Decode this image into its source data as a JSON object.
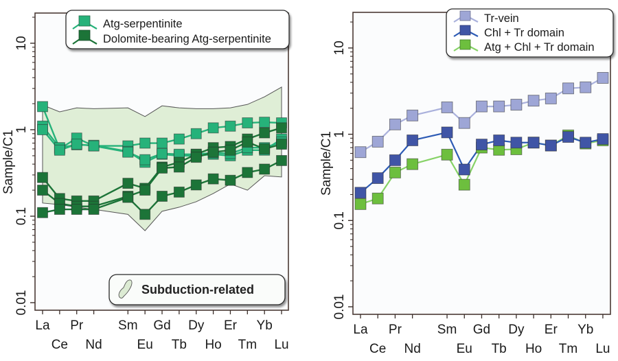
{
  "chart_data": [
    {
      "type": "line",
      "panel": "left",
      "yscale": "log",
      "ylabel": "Sample/C1",
      "xlabel": "",
      "ylim": [
        0.01,
        20
      ],
      "yticks": [
        {
          "value": 10,
          "label": "10"
        },
        {
          "value": 1,
          "label": "1"
        },
        {
          "value": 0.1,
          "label": "0.1"
        },
        {
          "value": 0.01,
          "label": "0.01"
        }
      ],
      "categories": [
        "La",
        "Ce",
        "Pr",
        "Nd",
        "Sm",
        "Eu",
        "Gd",
        "Tb",
        "Dy",
        "Ho",
        "Er",
        "Tm",
        "Yb",
        "Lu"
      ],
      "category_positions": [
        0,
        1,
        2,
        3,
        5,
        6,
        7,
        8,
        9,
        10,
        11,
        12,
        13,
        14
      ],
      "category_rows": [
        0,
        1,
        0,
        1,
        0,
        1,
        0,
        1,
        0,
        1,
        0,
        1,
        0,
        1
      ],
      "envelope": {
        "name": "Subduction-related",
        "fill": "#dfeed6",
        "stroke": "#555555",
        "upper": [
          1.93,
          1.61,
          1.79,
          1.75,
          1.79,
          1.42,
          1.89,
          1.79,
          1.75,
          1.75,
          1.79,
          1.96,
          2.4,
          3.11
        ],
        "lower": [
          0.142,
          0.136,
          0.127,
          0.12,
          0.105,
          0.068,
          0.114,
          0.127,
          0.147,
          0.183,
          0.236,
          0.2,
          0.294,
          0.284
        ]
      },
      "legend": [
        {
          "name": "Atg-serpentinite",
          "color": "#26b27a",
          "marker": "square"
        },
        {
          "name": "Dolomite-bearing Atg-serpentinite",
          "color": "#1c7438",
          "marker": "square"
        }
      ],
      "legend_placement": "top",
      "envelope_legend_placement": "bottom-right",
      "series": [
        {
          "name": "Atg-serpentinite",
          "group": 0,
          "color": "#26b27a",
          "values": [
            1.85,
            0.6,
            0.8,
            0.65,
            0.65,
            0.7,
            0.7,
            0.78,
            0.9,
            1.05,
            1.1,
            1.2,
            1.22,
            1.2
          ]
        },
        {
          "name": "Atg-serpentinite",
          "group": 0,
          "color": "#26b27a",
          "values": [
            1.1,
            0.62,
            0.67,
            0.66,
            0.56,
            0.42,
            0.52,
            0.5,
            0.5,
            0.52,
            0.5,
            0.58,
            0.58,
            0.78
          ]
        },
        {
          "name": "Atg-serpentinite",
          "group": 0,
          "color": "#26b27a",
          "values": [
            1.0,
            0.58,
            0.68,
            0.65,
            0.55,
            0.45,
            0.53,
            0.52,
            0.52,
            0.54,
            0.53,
            0.62,
            0.62,
            0.72
          ]
        },
        {
          "name": "Dolomite-bearing Atg-serpentinite",
          "group": 1,
          "color": "#1c7438",
          "values": [
            0.28,
            0.16,
            0.15,
            0.15,
            0.24,
            0.21,
            0.37,
            0.42,
            0.52,
            0.62,
            0.64,
            0.78,
            0.92,
            1.05
          ]
        },
        {
          "name": "Dolomite-bearing Atg-serpentinite",
          "group": 1,
          "color": "#1c7438",
          "values": [
            0.2,
            0.14,
            0.13,
            0.13,
            0.17,
            0.2,
            0.36,
            0.37,
            0.48,
            0.55,
            0.58,
            0.72,
            0.6,
            0.68
          ]
        },
        {
          "name": "Dolomite-bearing Atg-serpentinite",
          "group": 1,
          "color": "#1c7438",
          "values": [
            0.11,
            0.12,
            0.12,
            0.12,
            0.165,
            0.105,
            0.17,
            0.19,
            0.23,
            0.27,
            0.26,
            0.32,
            0.35,
            0.44
          ]
        }
      ]
    },
    {
      "type": "line",
      "panel": "right",
      "yscale": "log",
      "ylabel": "Sample/C1",
      "xlabel": "",
      "ylim": [
        0.01,
        20
      ],
      "yticks": [
        {
          "value": 10,
          "label": "10"
        },
        {
          "value": 1,
          "label": "1"
        },
        {
          "value": 0.1,
          "label": "0.1"
        },
        {
          "value": 0.01,
          "label": "0.01"
        }
      ],
      "categories": [
        "La",
        "Ce",
        "Pr",
        "Nd",
        "Sm",
        "Eu",
        "Gd",
        "Tb",
        "Dy",
        "Ho",
        "Er",
        "Tm",
        "Yb",
        "Lu"
      ],
      "category_positions": [
        0,
        1,
        2,
        3,
        5,
        6,
        7,
        8,
        9,
        10,
        11,
        12,
        13,
        14
      ],
      "category_rows": [
        0,
        1,
        0,
        1,
        0,
        1,
        0,
        1,
        0,
        1,
        0,
        1,
        0,
        1
      ],
      "legend_placement": "top-right",
      "legend": [
        {
          "name": "Tr-vein",
          "color": "#9ea6d6",
          "line": "#aab1dc"
        },
        {
          "name": "Chl + Tr domain",
          "color": "#4055a6",
          "line": "#2d5bb5"
        },
        {
          "name": "Atg + Chl + Tr domain",
          "color": "#6dbf3e",
          "line": "#86d266"
        }
      ],
      "series": [
        {
          "name": "Tr-vein",
          "color": "#9ea6d6",
          "line": "#aab1dc",
          "values": [
            0.62,
            0.82,
            1.3,
            1.65,
            2.05,
            1.35,
            2.1,
            2.1,
            2.2,
            2.45,
            2.6,
            3.4,
            3.5,
            4.5
          ]
        },
        {
          "name": "Atg + Chl + Tr domain",
          "color": "#6dbf3e",
          "line": "#86d266",
          "values": [
            0.155,
            0.18,
            0.36,
            0.45,
            0.58,
            0.26,
            0.7,
            0.66,
            0.67,
            0.8,
            0.74,
            0.97,
            0.78,
            0.85
          ]
        },
        {
          "name": "Chl + Tr domain",
          "color": "#4055a6",
          "line": "#2d5bb5",
          "values": [
            0.21,
            0.31,
            0.5,
            0.85,
            1.05,
            0.39,
            0.76,
            0.85,
            0.8,
            0.8,
            0.74,
            0.93,
            0.8,
            0.88
          ]
        }
      ]
    }
  ]
}
